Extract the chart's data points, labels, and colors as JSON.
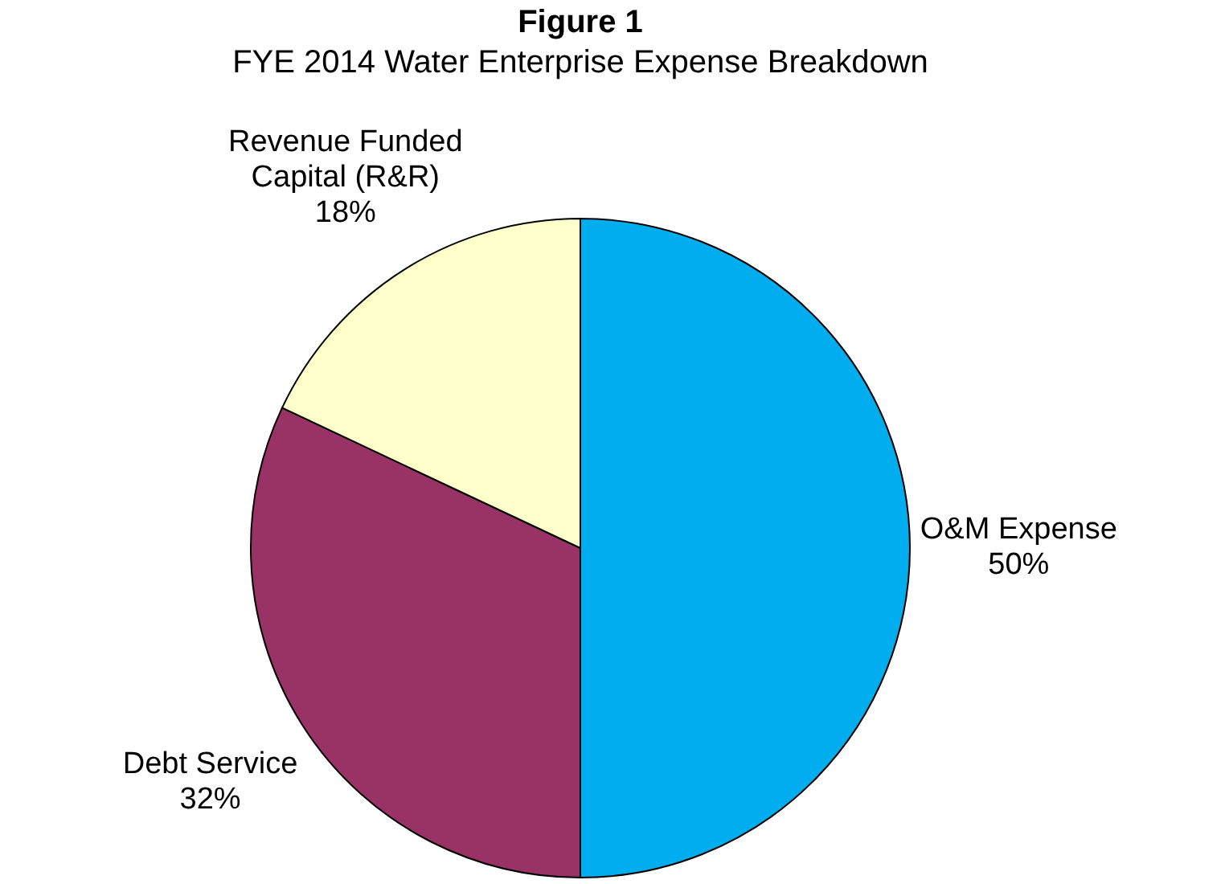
{
  "chart_data": {
    "type": "pie",
    "title": "Figure 1",
    "subtitle": "FYE 2014 Water Enterprise Expense Breakdown",
    "categories": [
      "O&M Expense",
      "Debt Service",
      "Revenue Funded Capital (R&R)"
    ],
    "values": [
      50,
      32,
      18
    ],
    "colors": [
      "#00aeef",
      "#993366",
      "#ffffcc"
    ],
    "value_labels": [
      "50%",
      "32%",
      "18%"
    ]
  }
}
